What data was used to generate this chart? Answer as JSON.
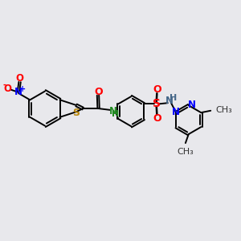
{
  "bg_color": "#e8e8ec",
  "bond_color": "#000000",
  "bw": 1.4,
  "figsize": [
    3.0,
    3.0
  ],
  "dpi": 100,
  "xlim": [
    0,
    10
  ],
  "ylim": [
    0,
    10
  ]
}
